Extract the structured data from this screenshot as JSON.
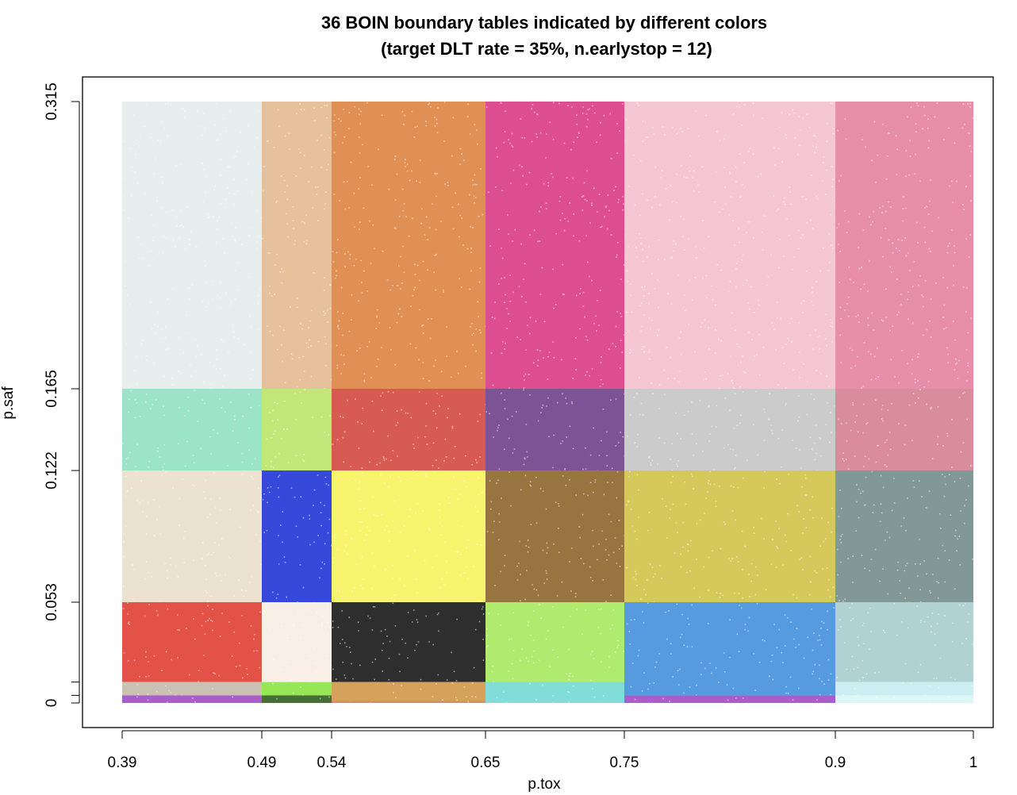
{
  "chart_data": {
    "type": "scatter",
    "title": "36 BOIN boundary tables indicated by different colors",
    "subtitle": "(target DLT rate = 35%, n.earlystop = 12)",
    "xlabel": "p.tox",
    "ylabel": "p.saf",
    "xlim": [
      0.39,
      1
    ],
    "ylim": [
      0,
      0.315
    ],
    "x_ticks": [
      "0.39",
      "0.49",
      "0.54",
      "0.65",
      "0.75",
      "0.9",
      "1"
    ],
    "y_ticks": [
      "0",
      "0.053",
      "0.122",
      "0.165",
      "0.315"
    ],
    "x_tick_values": [
      0.39,
      0.49,
      0.54,
      0.65,
      0.75,
      0.9,
      1
    ],
    "y_tick_values": [
      0,
      0.053,
      0.122,
      0.165,
      0.315
    ],
    "grid": false,
    "legend": "none",
    "regions": [
      {
        "x": [
          0.39,
          0.49
        ],
        "y": [
          0.165,
          0.315
        ],
        "color": "#e2ecec"
      },
      {
        "x": [
          0.49,
          0.54
        ],
        "y": [
          0.165,
          0.315
        ],
        "color": "#e2b88e"
      },
      {
        "x": [
          0.54,
          0.65
        ],
        "y": [
          0.165,
          0.315
        ],
        "color": "#dc803e"
      },
      {
        "x": [
          0.65,
          0.75
        ],
        "y": [
          0.165,
          0.315
        ],
        "color": "#d7357f"
      },
      {
        "x": [
          0.75,
          0.9
        ],
        "y": [
          0.165,
          0.315
        ],
        "color": "#f4bfcc"
      },
      {
        "x": [
          0.9,
          1
        ],
        "y": [
          0.165,
          0.315
        ],
        "color": "#e47e9e"
      },
      {
        "x": [
          0.39,
          0.49
        ],
        "y": [
          0.122,
          0.165
        ],
        "color": "#8ee0c1"
      },
      {
        "x": [
          0.49,
          0.54
        ],
        "y": [
          0.122,
          0.165
        ],
        "color": "#b9e466"
      },
      {
        "x": [
          0.54,
          0.65
        ],
        "y": [
          0.122,
          0.165
        ],
        "color": "#d2433b"
      },
      {
        "x": [
          0.65,
          0.75
        ],
        "y": [
          0.122,
          0.165
        ],
        "color": "#6b3b86"
      },
      {
        "x": [
          0.75,
          0.9
        ],
        "y": [
          0.122,
          0.165
        ],
        "color": "#c4c4c4"
      },
      {
        "x": [
          0.9,
          1
        ],
        "y": [
          0.122,
          0.165
        ],
        "color": "#d47d8e"
      },
      {
        "x": [
          0.39,
          0.49
        ],
        "y": [
          0.053,
          0.122
        ],
        "color": "#e8dfca"
      },
      {
        "x": [
          0.49,
          0.54
        ],
        "y": [
          0.053,
          0.122
        ],
        "color": "#1a2fd4"
      },
      {
        "x": [
          0.54,
          0.65
        ],
        "y": [
          0.053,
          0.122
        ],
        "color": "#f8f35a"
      },
      {
        "x": [
          0.65,
          0.75
        ],
        "y": [
          0.053,
          0.122
        ],
        "color": "#8a6127"
      },
      {
        "x": [
          0.75,
          0.9
        ],
        "y": [
          0.053,
          0.122
        ],
        "color": "#d0c244"
      },
      {
        "x": [
          0.9,
          1
        ],
        "y": [
          0.053,
          0.122
        ],
        "color": "#718a88"
      },
      {
        "x": [
          0.39,
          0.49
        ],
        "y": [
          0.011,
          0.053
        ],
        "color": "#de3a2e"
      },
      {
        "x": [
          0.49,
          0.54
        ],
        "y": [
          0.011,
          0.053
        ],
        "color": "#f9ede3"
      },
      {
        "x": [
          0.54,
          0.65
        ],
        "y": [
          0.011,
          0.053
        ],
        "color": "#111111"
      },
      {
        "x": [
          0.65,
          0.75
        ],
        "y": [
          0.0,
          0.053
        ],
        "color": "#a3e85a"
      },
      {
        "x": [
          0.75,
          0.9
        ],
        "y": [
          0.004,
          0.053
        ],
        "color": "#3f8ddc"
      },
      {
        "x": [
          0.9,
          1
        ],
        "y": [
          0.011,
          0.053
        ],
        "color": "#a6cccc"
      },
      {
        "x": [
          0.39,
          0.49
        ],
        "y": [
          0.004,
          0.011
        ],
        "color": "#c2b8a6"
      },
      {
        "x": [
          0.49,
          0.54
        ],
        "y": [
          0.004,
          0.011
        ],
        "color": "#86e43f"
      },
      {
        "x": [
          0.54,
          0.65
        ],
        "y": [
          0.0,
          0.011
        ],
        "color": "#cf9545"
      },
      {
        "x": [
          0.65,
          0.75
        ],
        "y": [
          0.0,
          0.011
        ],
        "color": "#7adbe6"
      },
      {
        "x": [
          0.75,
          0.9
        ],
        "y": [
          0.0,
          0.004
        ],
        "color": "#9b49c7"
      },
      {
        "x": [
          0.9,
          1
        ],
        "y": [
          0.004,
          0.011
        ],
        "color": "#c4ecee"
      },
      {
        "x": [
          0.39,
          0.49
        ],
        "y": [
          0.0,
          0.004
        ],
        "color": "#9b49c7"
      },
      {
        "x": [
          0.49,
          0.54
        ],
        "y": [
          0.0,
          0.004
        ],
        "color": "#2d5a1a"
      },
      {
        "x": [
          0.54,
          0.65
        ],
        "y": [
          0.0,
          0.001
        ],
        "color": "#d98870"
      },
      {
        "x": [
          0.9,
          1
        ],
        "y": [
          0.0,
          0.004
        ],
        "color": "#d8f6f6"
      }
    ]
  }
}
